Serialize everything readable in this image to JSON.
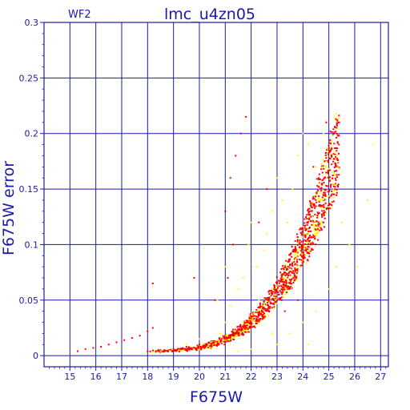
{
  "chart_data": {
    "type": "scatter",
    "title": "lmc_u4zn05",
    "panel_label": "WF2",
    "xlabel": "F675W",
    "ylabel": "F675W error",
    "xlim": [
      14,
      27.3
    ],
    "ylim": [
      -0.01,
      0.3
    ],
    "x_ticks": [
      15,
      16,
      17,
      18,
      19,
      20,
      21,
      22,
      23,
      24,
      25,
      26,
      27
    ],
    "y_ticks": [
      0,
      0.05,
      0.1,
      0.15,
      0.2,
      0.25,
      0.3
    ],
    "y_tick_labels": [
      "0",
      "0.05",
      "0.1",
      "0.15",
      "0.2",
      "0.25",
      "0.3"
    ],
    "grid": true,
    "series": [
      {
        "color": "#ffff00",
        "points": [
          [
            20.5,
            0.008
          ],
          [
            20.8,
            0.02
          ],
          [
            21.0,
            0.03
          ],
          [
            21.2,
            0.045
          ],
          [
            21.5,
            0.06
          ],
          [
            21.7,
            0.07
          ],
          [
            21.9,
            0.1
          ],
          [
            22.0,
            0.12
          ],
          [
            22.2,
            0.08
          ],
          [
            22.3,
            0.05
          ],
          [
            22.5,
            0.095
          ],
          [
            22.6,
            0.11
          ],
          [
            22.8,
            0.13
          ],
          [
            23.0,
            0.16
          ],
          [
            23.2,
            0.14
          ],
          [
            23.4,
            0.12
          ],
          [
            23.6,
            0.15
          ],
          [
            23.8,
            0.18
          ],
          [
            24.0,
            0.2
          ],
          [
            24.2,
            0.19
          ],
          [
            24.5,
            0.17
          ],
          [
            24.8,
            0.2
          ],
          [
            25.2,
            0.15
          ],
          [
            25.5,
            0.12
          ],
          [
            25.8,
            0.1
          ],
          [
            26.1,
            0.08
          ],
          [
            26.5,
            0.14
          ],
          [
            26.7,
            0.19
          ],
          [
            23.0,
            0.01
          ],
          [
            23.5,
            0.02
          ],
          [
            24.0,
            0.03
          ],
          [
            24.5,
            0.04
          ],
          [
            25.0,
            0.06
          ],
          [
            25.3,
            0.08
          ],
          [
            22.0,
            0.006
          ],
          [
            21.5,
            0.004
          ],
          [
            19.5,
            0.01
          ],
          [
            20.0,
            0.015
          ],
          [
            18.6,
            0.005
          ],
          [
            21.0,
            0.08
          ],
          [
            20.7,
            0.05
          ],
          [
            22.8,
            0.02
          ],
          [
            24.2,
            0.01
          ]
        ]
      },
      {
        "color": "#ff0000",
        "points": [
          [
            15.3,
            0.004
          ],
          [
            15.6,
            0.006
          ],
          [
            15.9,
            0.007
          ],
          [
            16.2,
            0.008
          ],
          [
            16.5,
            0.01
          ],
          [
            16.8,
            0.012
          ],
          [
            17.1,
            0.014
          ],
          [
            17.4,
            0.016
          ],
          [
            17.7,
            0.018
          ],
          [
            18.0,
            0.022
          ],
          [
            18.2,
            0.025
          ],
          [
            18.0,
            0.004
          ],
          [
            18.5,
            0.005
          ],
          [
            19.0,
            0.006
          ],
          [
            19.5,
            0.008
          ],
          [
            20.0,
            0.01
          ],
          [
            20.5,
            0.013
          ],
          [
            21.0,
            0.017
          ],
          [
            21.5,
            0.022
          ],
          [
            22.0,
            0.03
          ],
          [
            22.5,
            0.038
          ],
          [
            23.0,
            0.05
          ],
          [
            23.5,
            0.065
          ],
          [
            24.0,
            0.085
          ],
          [
            24.3,
            0.1
          ],
          [
            24.6,
            0.12
          ],
          [
            24.8,
            0.14
          ],
          [
            25.0,
            0.16
          ],
          [
            25.1,
            0.18
          ],
          [
            25.2,
            0.2
          ],
          [
            21.0,
            0.13
          ],
          [
            21.2,
            0.16
          ],
          [
            21.4,
            0.18
          ],
          [
            21.6,
            0.2
          ],
          [
            21.8,
            0.215
          ],
          [
            21.3,
            0.1
          ],
          [
            21.1,
            0.07
          ],
          [
            20.6,
            0.05
          ],
          [
            19.8,
            0.07
          ],
          [
            18.2,
            0.065
          ],
          [
            23.3,
            0.04
          ],
          [
            23.8,
            0.05
          ],
          [
            22.3,
            0.12
          ],
          [
            22.6,
            0.15
          ],
          [
            24.0,
            0.15
          ],
          [
            24.4,
            0.17
          ],
          [
            24.9,
            0.21
          ],
          [
            25.4,
            0.21
          ]
        ]
      }
    ]
  }
}
